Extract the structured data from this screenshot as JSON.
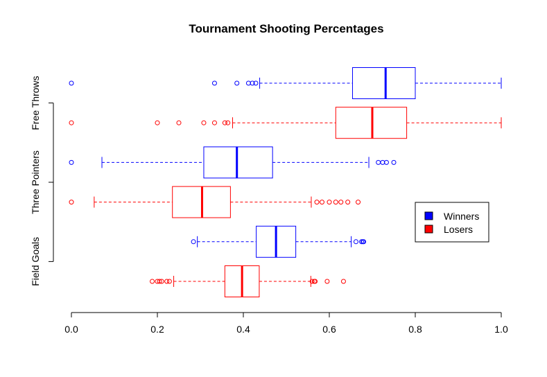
{
  "chart_data": {
    "type": "boxplot",
    "orientation": "horizontal",
    "title": "Tournament Shooting Percentages",
    "xlabel": "",
    "ylabel": "",
    "xlim": [
      0,
      1
    ],
    "xticks": [
      "0.0",
      "0.2",
      "0.4",
      "0.6",
      "0.8",
      "1.0"
    ],
    "xtick_values": [
      0,
      0.2,
      0.4,
      0.6,
      0.8,
      1.0
    ],
    "categories": [
      "Field Goals",
      "Three Pointers",
      "Free Throws"
    ],
    "grid": false,
    "legend": {
      "placement": "right",
      "entries": [
        {
          "label": "Winners",
          "color": "#0000ff"
        },
        {
          "label": "Losers",
          "color": "#ff0000"
        }
      ]
    },
    "boxes": [
      {
        "category": "Field Goals",
        "series": "Losers",
        "color": "#ff0000",
        "whisker_low": 0.238,
        "q1": 0.357,
        "median": 0.397,
        "q3": 0.437,
        "whisker_high": 0.557,
        "outliers": [
          0.188,
          0.2,
          0.205,
          0.21,
          0.222,
          0.228,
          0.56,
          0.565,
          0.567,
          0.595,
          0.633
        ]
      },
      {
        "category": "Field Goals",
        "series": "Winners",
        "color": "#0000ff",
        "whisker_low": 0.293,
        "q1": 0.43,
        "median": 0.476,
        "q3": 0.522,
        "whisker_high": 0.651,
        "outliers": [
          0.284,
          0.662,
          0.675,
          0.678,
          0.68
        ]
      },
      {
        "category": "Three Pointers",
        "series": "Losers",
        "color": "#ff0000",
        "whisker_low": 0.053,
        "q1": 0.235,
        "median": 0.304,
        "q3": 0.37,
        "whisker_high": 0.558,
        "outliers": [
          0.0,
          0.571,
          0.583,
          0.6,
          0.615,
          0.627,
          0.643,
          0.667
        ]
      },
      {
        "category": "Three Pointers",
        "series": "Winners",
        "color": "#0000ff",
        "whisker_low": 0.071,
        "q1": 0.308,
        "median": 0.385,
        "q3": 0.468,
        "whisker_high": 0.692,
        "outliers": [
          0.0,
          0.714,
          0.724,
          0.733,
          0.75
        ]
      },
      {
        "category": "Free Throws",
        "series": "Losers",
        "color": "#ff0000",
        "whisker_low": 0.375,
        "q1": 0.615,
        "median": 0.7,
        "q3": 0.78,
        "whisker_high": 1.0,
        "outliers": [
          0.0,
          0.2,
          0.25,
          0.308,
          0.333,
          0.357,
          0.364
        ]
      },
      {
        "category": "Free Throws",
        "series": "Winners",
        "color": "#0000ff",
        "whisker_low": 0.438,
        "q1": 0.654,
        "median": 0.731,
        "q3": 0.8,
        "whisker_high": 1.0,
        "outliers": [
          0.0,
          0.333,
          0.385,
          0.412,
          0.421,
          0.429
        ]
      }
    ]
  }
}
